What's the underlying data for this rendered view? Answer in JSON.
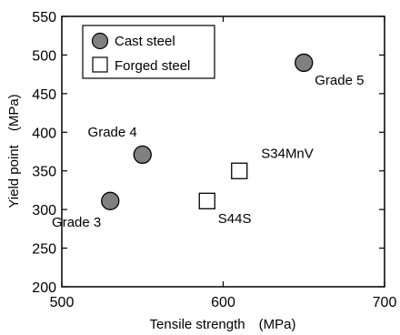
{
  "chart_data": {
    "type": "scatter",
    "xlabel": "Tensile strength　(MPa)",
    "ylabel": "Yield point　(MPa)",
    "xlim": [
      500,
      700
    ],
    "ylim": [
      200,
      550
    ],
    "xticks": [
      500,
      600,
      700
    ],
    "yticks": [
      200,
      250,
      300,
      350,
      400,
      450,
      500,
      550
    ],
    "grid": false,
    "legend_position": "top-left",
    "series": [
      {
        "name": "Cast steel",
        "marker": "circle",
        "fill": "#808080",
        "points": [
          {
            "x": 530,
            "y": 311,
            "label": "Grade 3",
            "label_pos": "below-left"
          },
          {
            "x": 550,
            "y": 371,
            "label": "Grade 4",
            "label_pos": "above-left"
          },
          {
            "x": 650,
            "y": 490,
            "label": "Grade 5",
            "label_pos": "below-right"
          }
        ]
      },
      {
        "name": "Forged steel",
        "marker": "square",
        "fill": "#ffffff",
        "points": [
          {
            "x": 590,
            "y": 311,
            "label": "S44S",
            "label_pos": "below-right"
          },
          {
            "x": 610,
            "y": 350,
            "label": "S34MnV",
            "label_pos": "above-right"
          }
        ]
      }
    ]
  }
}
